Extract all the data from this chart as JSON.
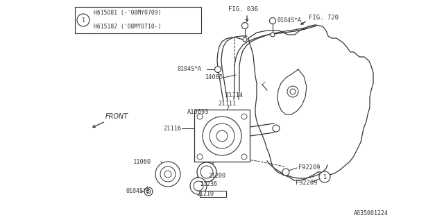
{
  "bg_color": "#ffffff",
  "line_color": "#333333",
  "parts": {
    "H615081": "H615081 (-'08MY0709)",
    "H615182": "H615182 ('08MY0710-)",
    "p21111": "21111",
    "p21114": "21114",
    "p14065": "14065",
    "p0104SA": "0104S*A",
    "p0104SB": "0104S*B",
    "p21116": "21116",
    "pA10693": "A10693",
    "p21200": "21200",
    "p21236": "21236",
    "p21210": "21210",
    "p11060": "11060",
    "pF92209a": "F92209",
    "pF92209b": "F92209",
    "p0104SA2": "0104S*A",
    "fig036": "FIG. 036",
    "fig720": "FIG. 720",
    "front": "FRONT",
    "docnum": "A035001224"
  }
}
